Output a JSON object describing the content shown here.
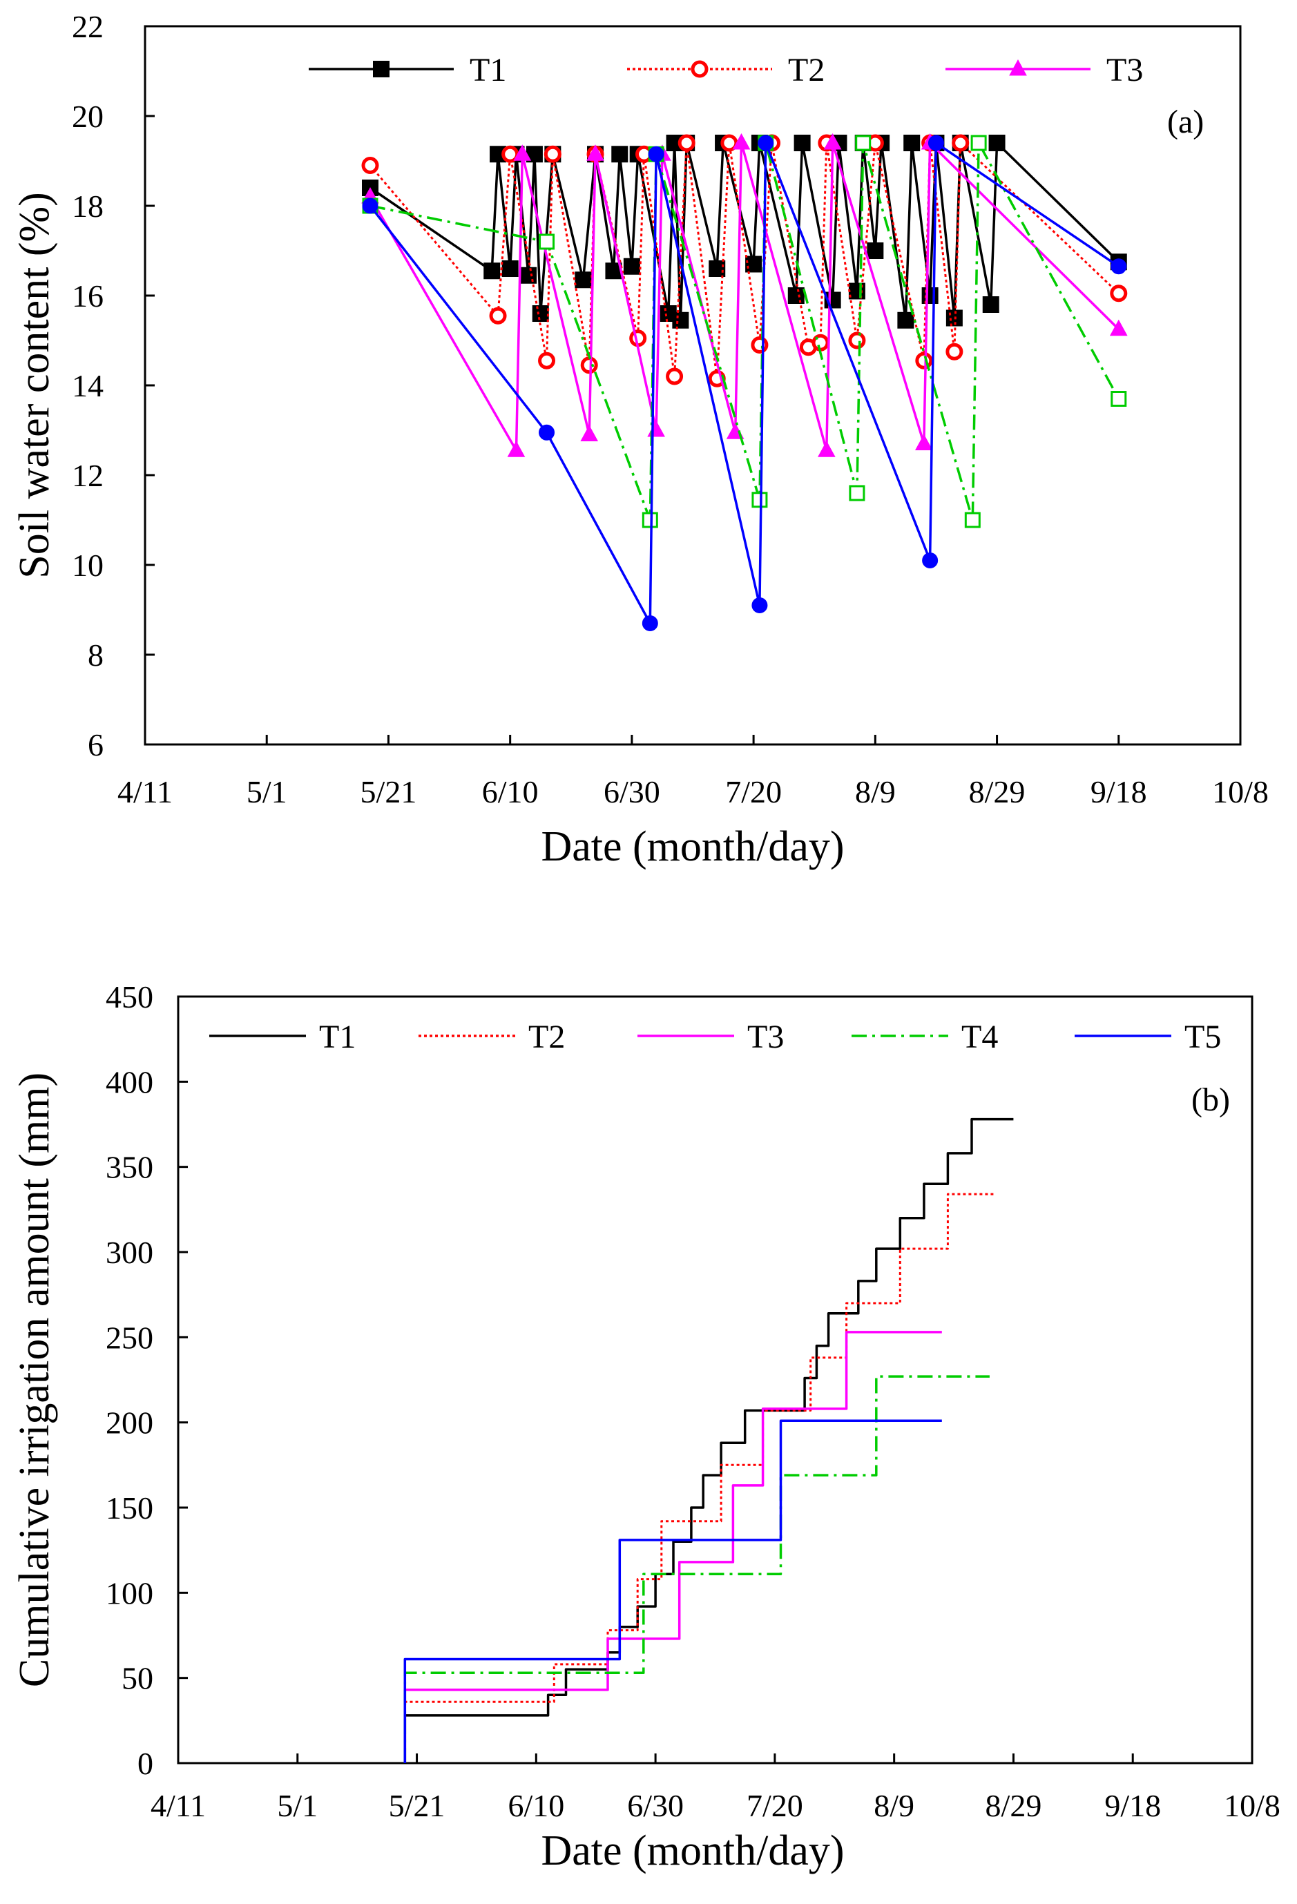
{
  "chart_data": [
    {
      "panel_label": "(a)",
      "type": "line",
      "ylabel": "Soil water content  (%)",
      "xlabel": "Date (month/day)",
      "x_ticks": [
        "4/11",
        "5/1",
        "5/21",
        "6/10",
        "6/30",
        "7/20",
        "8/9",
        "8/29",
        "9/18",
        "10/8"
      ],
      "y_ticks": [
        "6",
        "8",
        "10",
        "12",
        "14",
        "16",
        "18",
        "20",
        "22"
      ],
      "xlim": [
        "4/11",
        "10/8"
      ],
      "ylim": [
        6,
        22
      ],
      "grid": false,
      "legend_position": "top",
      "series": [
        {
          "name": "T1",
          "color": "#000000",
          "marker": "filled-square",
          "style": "solid",
          "points": [
            [
              "5/18",
              18.4
            ],
            [
              "6/7",
              16.55
            ],
            [
              "6/8",
              19.15
            ],
            [
              "6/10",
              16.6
            ],
            [
              "6/11",
              19.15
            ],
            [
              "6/13",
              16.45
            ],
            [
              "6/14",
              19.15
            ],
            [
              "6/15",
              15.6
            ],
            [
              "6/17",
              19.15
            ],
            [
              "6/22",
              16.35
            ],
            [
              "6/24",
              19.15
            ],
            [
              "6/27",
              16.55
            ],
            [
              "6/28",
              19.15
            ],
            [
              "6/30",
              16.65
            ],
            [
              "7/1",
              19.15
            ],
            [
              "7/6",
              15.6
            ],
            [
              "7/7",
              19.4
            ],
            [
              "7/8",
              15.45
            ],
            [
              "7/9",
              19.4
            ],
            [
              "7/14",
              16.6
            ],
            [
              "7/15",
              19.4
            ],
            [
              "7/20",
              16.7
            ],
            [
              "7/21",
              19.4
            ],
            [
              "7/27",
              16.0
            ],
            [
              "7/28",
              19.4
            ],
            [
              "8/2",
              15.9
            ],
            [
              "8/3",
              19.4
            ],
            [
              "8/6",
              16.1
            ],
            [
              "8/7",
              19.4
            ],
            [
              "8/9",
              17.0
            ],
            [
              "8/10",
              19.4
            ],
            [
              "8/14",
              15.45
            ],
            [
              "8/15",
              19.4
            ],
            [
              "8/18",
              16.0
            ],
            [
              "8/19",
              19.4
            ],
            [
              "8/22",
              15.5
            ],
            [
              "8/23",
              19.4
            ],
            [
              "8/28",
              15.8
            ],
            [
              "8/29",
              19.4
            ],
            [
              "9/18",
              16.75
            ]
          ]
        },
        {
          "name": "T2",
          "color": "#ff0000",
          "marker": "open-circle",
          "style": "dotted",
          "points": [
            [
              "5/18",
              18.9
            ],
            [
              "6/8",
              15.55
            ],
            [
              "6/10",
              19.15
            ],
            [
              "6/16",
              14.55
            ],
            [
              "6/17",
              19.15
            ],
            [
              "6/23",
              14.45
            ],
            [
              "6/24",
              19.15
            ],
            [
              "7/1",
              15.05
            ],
            [
              "7/2",
              19.15
            ],
            [
              "7/7",
              14.2
            ],
            [
              "7/9",
              19.4
            ],
            [
              "7/14",
              14.15
            ],
            [
              "7/16",
              19.4
            ],
            [
              "7/21",
              14.9
            ],
            [
              "7/23",
              19.4
            ],
            [
              "7/29",
              14.85
            ],
            [
              "7/31",
              14.95
            ],
            [
              "8/1",
              19.4
            ],
            [
              "8/6",
              15.0
            ],
            [
              "8/9",
              19.4
            ],
            [
              "8/17",
              14.55
            ],
            [
              "8/18",
              19.4
            ],
            [
              "8/22",
              14.75
            ],
            [
              "8/23",
              19.4
            ],
            [
              "9/18",
              16.05
            ]
          ]
        },
        {
          "name": "T3",
          "color": "#ff00ff",
          "marker": "filled-triangle",
          "style": "solid",
          "points": [
            [
              "5/18",
              18.2
            ],
            [
              "6/11",
              12.55
            ],
            [
              "6/12",
              19.15
            ],
            [
              "6/23",
              12.9
            ],
            [
              "6/24",
              19.15
            ],
            [
              "7/4",
              13.0
            ],
            [
              "7/5",
              19.15
            ],
            [
              "7/17",
              12.95
            ],
            [
              "7/18",
              19.4
            ],
            [
              "8/1",
              12.55
            ],
            [
              "8/2",
              19.4
            ],
            [
              "8/17",
              12.7
            ],
            [
              "8/18",
              19.4
            ],
            [
              "9/18",
              15.25
            ]
          ]
        },
        {
          "name": "",
          "color": "#00cc00",
          "marker": "open-square",
          "style": "dash-dot",
          "points": [
            [
              "5/18",
              18.0
            ],
            [
              "6/16",
              17.2
            ],
            [
              "7/3",
              11.0
            ],
            [
              "7/4",
              19.15
            ],
            [
              "7/21",
              11.45
            ],
            [
              "7/22",
              19.4
            ],
            [
              "8/6",
              11.6
            ],
            [
              "8/7",
              19.4
            ],
            [
              "8/25",
              11.0
            ],
            [
              "8/26",
              19.4
            ],
            [
              "9/18",
              13.7
            ]
          ]
        },
        {
          "name": "",
          "color": "#0000ff",
          "marker": "filled-circle",
          "style": "solid",
          "points": [
            [
              "5/18",
              18.0
            ],
            [
              "6/16",
              12.95
            ],
            [
              "7/3",
              8.7
            ],
            [
              "7/4",
              19.15
            ],
            [
              "7/21",
              9.1
            ],
            [
              "7/22",
              19.4
            ],
            [
              "8/18",
              10.1
            ],
            [
              "8/19",
              19.4
            ],
            [
              "9/18",
              16.65
            ]
          ]
        }
      ]
    },
    {
      "panel_label": "(b)",
      "type": "line",
      "ylabel": "Cumulative irrigation amount (mm)",
      "xlabel": "Date (month/day)",
      "x_ticks": [
        "4/11",
        "5/1",
        "5/21",
        "6/10",
        "6/30",
        "7/20",
        "8/9",
        "8/29",
        "9/18",
        "10/8"
      ],
      "y_ticks": [
        "0",
        "50",
        "100",
        "150",
        "200",
        "250",
        "300",
        "350",
        "400",
        "450"
      ],
      "xlim": [
        "4/11",
        "10/8"
      ],
      "ylim": [
        0,
        450
      ],
      "grid": false,
      "legend_position": "top",
      "series": [
        {
          "name": "T1",
          "color": "#000000",
          "style": "solid",
          "step": true,
          "points": [
            [
              "5/19",
              0
            ],
            [
              "5/19",
              28
            ],
            [
              "6/12",
              28
            ],
            [
              "6/12",
              40
            ],
            [
              "6/15",
              40
            ],
            [
              "6/15",
              55
            ],
            [
              "6/22",
              55
            ],
            [
              "6/22",
              65
            ],
            [
              "6/24",
              65
            ],
            [
              "6/24",
              80
            ],
            [
              "6/27",
              80
            ],
            [
              "6/27",
              92
            ],
            [
              "6/30",
              92
            ],
            [
              "6/30",
              111
            ],
            [
              "7/3",
              111
            ],
            [
              "7/3",
              130
            ],
            [
              "7/6",
              130
            ],
            [
              "7/6",
              150
            ],
            [
              "7/8",
              150
            ],
            [
              "7/8",
              169
            ],
            [
              "7/11",
              169
            ],
            [
              "7/11",
              188
            ],
            [
              "7/15",
              188
            ],
            [
              "7/15",
              207
            ],
            [
              "7/25",
              207
            ],
            [
              "7/25",
              226
            ],
            [
              "7/27",
              226
            ],
            [
              "7/27",
              245
            ],
            [
              "7/29",
              245
            ],
            [
              "7/29",
              264
            ],
            [
              "8/3",
              264
            ],
            [
              "8/3",
              283
            ],
            [
              "8/6",
              283
            ],
            [
              "8/6",
              302
            ],
            [
              "8/10",
              302
            ],
            [
              "8/10",
              320
            ],
            [
              "8/14",
              320
            ],
            [
              "8/14",
              340
            ],
            [
              "8/18",
              340
            ],
            [
              "8/18",
              358
            ],
            [
              "8/22",
              358
            ],
            [
              "8/22",
              378
            ],
            [
              "8/29",
              378
            ]
          ]
        },
        {
          "name": "T2",
          "color": "#ff0000",
          "style": "dotted",
          "step": true,
          "points": [
            [
              "5/19",
              0
            ],
            [
              "5/19",
              36
            ],
            [
              "6/13",
              36
            ],
            [
              "6/13",
              58
            ],
            [
              "6/22",
              58
            ],
            [
              "6/22",
              78
            ],
            [
              "6/27",
              78
            ],
            [
              "6/27",
              108
            ],
            [
              "7/1",
              108
            ],
            [
              "7/1",
              142
            ],
            [
              "7/11",
              142
            ],
            [
              "7/11",
              175
            ],
            [
              "7/18",
              175
            ],
            [
              "7/18",
              207
            ],
            [
              "7/26",
              207
            ],
            [
              "7/26",
              238
            ],
            [
              "8/1",
              238
            ],
            [
              "8/1",
              270
            ],
            [
              "8/10",
              270
            ],
            [
              "8/10",
              302
            ],
            [
              "8/18",
              302
            ],
            [
              "8/18",
              334
            ],
            [
              "8/26",
              334
            ]
          ]
        },
        {
          "name": "T3",
          "color": "#ff00ff",
          "style": "solid",
          "step": true,
          "points": [
            [
              "5/19",
              0
            ],
            [
              "5/19",
              43
            ],
            [
              "6/22",
              43
            ],
            [
              "6/22",
              73
            ],
            [
              "7/4",
              73
            ],
            [
              "7/4",
              118
            ],
            [
              "7/13",
              118
            ],
            [
              "7/13",
              163
            ],
            [
              "7/18",
              163
            ],
            [
              "7/18",
              208
            ],
            [
              "8/1",
              208
            ],
            [
              "8/1",
              253
            ],
            [
              "8/17",
              253
            ]
          ]
        },
        {
          "name": "T4",
          "color": "#00cc00",
          "style": "dash-dot",
          "step": true,
          "points": [
            [
              "5/19",
              0
            ],
            [
              "5/19",
              53
            ],
            [
              "6/28",
              53
            ],
            [
              "6/28",
              111
            ],
            [
              "7/21",
              111
            ],
            [
              "7/21",
              169
            ],
            [
              "8/6",
              169
            ],
            [
              "8/6",
              227
            ],
            [
              "8/25",
              227
            ]
          ]
        },
        {
          "name": "T5",
          "color": "#0000ff",
          "style": "solid",
          "step": true,
          "points": [
            [
              "5/19",
              0
            ],
            [
              "5/19",
              61
            ],
            [
              "6/24",
              61
            ],
            [
              "6/24",
              131
            ],
            [
              "7/21",
              131
            ],
            [
              "7/21",
              201
            ],
            [
              "8/17",
              201
            ]
          ]
        }
      ]
    }
  ]
}
